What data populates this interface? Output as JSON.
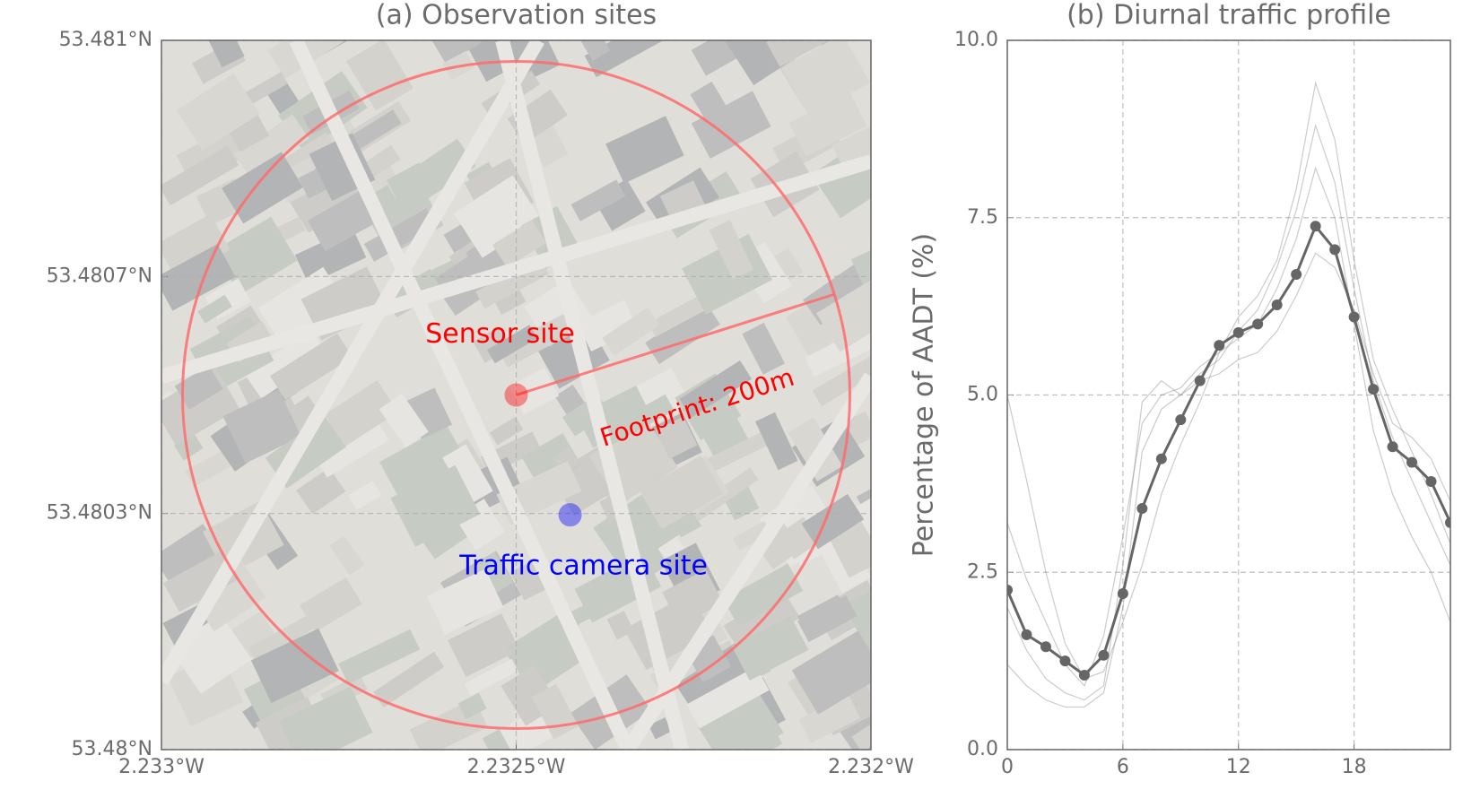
{
  "chart_data": [
    {
      "type": "scatter",
      "title": "(a) Observation sites",
      "xlim": [
        -2.233,
        -2.232
      ],
      "ylim": [
        53.48,
        53.481
      ],
      "xticks": [
        {
          "value": -2.233,
          "label": "2.233°W"
        },
        {
          "value": -2.2325,
          "label": "2.2325°W"
        },
        {
          "value": -2.232,
          "label": "2.232°W"
        }
      ],
      "yticks": [
        {
          "value": 53.48,
          "label": "53.48°N"
        },
        {
          "value": 53.480333,
          "label": "53.4803°N"
        },
        {
          "value": 53.480667,
          "label": "53.4807°N"
        },
        {
          "value": 53.481,
          "label": "53.481°N"
        }
      ],
      "grid": true,
      "annotation": "Footprint: 200m",
      "series": [
        {
          "name": "Sensor site",
          "color": "#ff0000",
          "x": [
            -2.2325
          ],
          "values": [
            53.4805
          ]
        },
        {
          "name": "Traffic camera site",
          "color": "#0000ff",
          "x": [
            -2.232424
          ],
          "values": [
            53.480331
          ]
        }
      ]
    },
    {
      "type": "line",
      "title": "(b) Diurnal traffic profile",
      "y_label": "Percentage of AADT (%)",
      "xlim": [
        0,
        23
      ],
      "ylim": [
        0,
        10
      ],
      "xticks": [
        0,
        6,
        12,
        18
      ],
      "yticks": [
        {
          "value": 0,
          "label": "0.0"
        },
        2.5,
        {
          "value": 5,
          "label": "5.0"
        },
        7.5,
        {
          "value": 10,
          "label": "10.0"
        }
      ],
      "grid": true,
      "x": [
        0,
        1,
        2,
        3,
        4,
        5,
        6,
        7,
        8,
        9,
        10,
        11,
        12,
        13,
        14,
        15,
        16,
        17,
        18,
        19,
        20,
        21,
        22,
        23
      ],
      "series": [
        {
          "color": "#8c8c8c",
          "values": [
            3.2,
            2.4,
            1.8,
            1.2,
            0.9,
            1.6,
            3.0,
            4.6,
            5.0,
            5.1,
            5.4,
            5.6,
            5.8,
            6.0,
            6.5,
            7.2,
            8.2,
            7.5,
            6.0,
            4.5,
            3.6,
            3.0,
            2.5,
            1.8
          ]
        },
        {
          "color": "#8c8c8c",
          "values": [
            1.2,
            0.9,
            0.7,
            0.6,
            0.6,
            0.8,
            2.0,
            4.2,
            4.8,
            5.0,
            5.3,
            5.5,
            5.9,
            6.2,
            6.8,
            7.6,
            8.8,
            8.0,
            6.5,
            5.2,
            4.4,
            3.8,
            3.2,
            2.6
          ]
        },
        {
          "color": "#8c8c8c",
          "values": [
            5.0,
            3.8,
            2.5,
            1.5,
            1.0,
            1.1,
            1.8,
            2.6,
            3.6,
            4.3,
            4.9,
            5.6,
            6.1,
            6.4,
            6.9,
            7.9,
            9.4,
            8.6,
            6.9,
            5.5,
            4.8,
            4.2,
            3.6,
            2.9
          ]
        },
        {
          "color": "#8c8c8c",
          "values": [
            2.0,
            1.4,
            1.0,
            0.8,
            0.7,
            0.9,
            2.6,
            4.9,
            5.2,
            5.0,
            5.2,
            5.3,
            5.5,
            5.6,
            5.9,
            6.4,
            7.0,
            6.8,
            6.2,
            5.3,
            4.6,
            4.4,
            4.1,
            3.5
          ]
        },
        {
          "color": "#666666",
          "markers": true,
          "values": [
            2.25,
            1.62,
            1.45,
            1.25,
            1.05,
            1.33,
            2.2,
            3.4,
            4.1,
            4.65,
            5.2,
            5.7,
            5.88,
            6.0,
            6.27,
            6.7,
            7.38,
            7.05,
            6.1,
            5.08,
            4.27,
            4.05,
            3.78,
            3.2
          ]
        }
      ]
    }
  ]
}
